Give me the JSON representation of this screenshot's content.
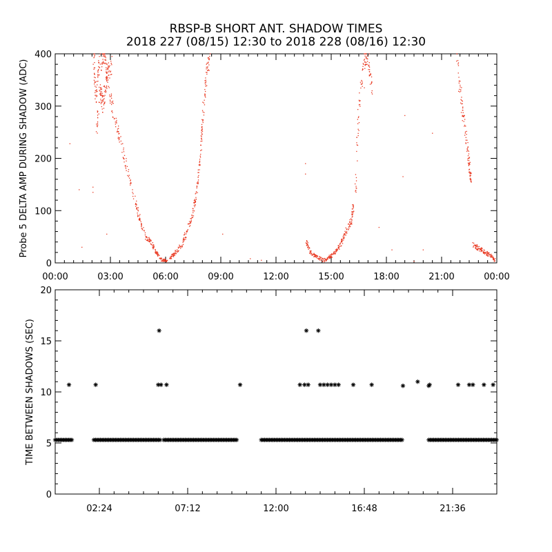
{
  "title": "RBSP-B SHORT ANT. SHADOW TIMES",
  "subtitle": "2018 227 (08/15) 12:30 to 2018 228 (08/16) 12:30",
  "colors": {
    "points_top": "#e8341c",
    "points_bottom": "#000000",
    "axes": "#000000"
  },
  "chart_data": [
    {
      "type": "scatter",
      "ylabel": "Probe 5 DELTA AMP DURING SHADOW (ADC)",
      "xlabel": "",
      "xlim": [
        0,
        24
      ],
      "ylim": [
        0,
        400
      ],
      "x_ticks": [
        0,
        3,
        6,
        9,
        12,
        15,
        18,
        21,
        24
      ],
      "x_tick_labels": [
        "00:00",
        "03:00",
        "06:00",
        "09:00",
        "12:00",
        "15:00",
        "18:00",
        "21:00",
        "00:00"
      ],
      "y_ticks": [
        0,
        100,
        200,
        300,
        400
      ],
      "y_tick_labels": [
        "0",
        "100",
        "200",
        "300",
        "400"
      ],
      "marker": "dot",
      "segments": [
        {
          "name": "",
          "points": [
            [
              2.1,
              400
            ],
            [
              2.2,
              320
            ],
            [
              2.4,
              380
            ],
            [
              2.7,
              400
            ],
            [
              2.9,
              330
            ],
            [
              3.3,
              270
            ],
            [
              3.7,
              210
            ],
            [
              4.1,
              150
            ],
            [
              4.5,
              95
            ],
            [
              4.9,
              50
            ],
            [
              5.2,
              40
            ],
            [
              5.5,
              20
            ],
            [
              5.8,
              5
            ],
            [
              6.1,
              4
            ]
          ]
        },
        {
          "name": "",
          "points": [
            [
              2.25,
              250
            ],
            [
              2.45,
              330
            ],
            [
              2.6,
              300
            ],
            [
              2.8,
              360
            ],
            [
              3.1,
              380
            ]
          ]
        },
        {
          "name": "",
          "points": [
            [
              6.2,
              8
            ],
            [
              6.5,
              18
            ],
            [
              6.9,
              35
            ],
            [
              7.2,
              65
            ],
            [
              7.5,
              95
            ],
            [
              7.7,
              140
            ],
            [
              7.9,
              215
            ],
            [
              8.0,
              270
            ],
            [
              8.2,
              350
            ],
            [
              8.4,
              400
            ]
          ]
        },
        {
          "name": "",
          "points": [
            [
              13.65,
              40
            ],
            [
              13.9,
              18
            ],
            [
              14.2,
              12
            ],
            [
              14.6,
              5
            ],
            [
              14.9,
              10
            ],
            [
              15.2,
              20
            ],
            [
              15.5,
              35
            ],
            [
              15.8,
              60
            ],
            [
              16.1,
              80
            ],
            [
              16.2,
              110
            ]
          ]
        },
        {
          "name": "",
          "points": [
            [
              16.3,
              120
            ],
            [
              16.5,
              290
            ],
            [
              16.8,
              390
            ],
            [
              17.0,
              400
            ],
            [
              17.2,
              330
            ]
          ]
        },
        {
          "name": "",
          "points": [
            [
              21.8,
              400
            ],
            [
              22.1,
              300
            ],
            [
              22.3,
              250
            ],
            [
              22.5,
              190
            ],
            [
              22.6,
              150
            ]
          ]
        },
        {
          "name": "",
          "points": [
            [
              22.7,
              35
            ],
            [
              23.0,
              28
            ],
            [
              23.3,
              22
            ],
            [
              23.6,
              15
            ],
            [
              23.9,
              5
            ]
          ]
        }
      ],
      "scattered_points": [
        [
          0.8,
          228
        ],
        [
          1.3,
          140
        ],
        [
          1.45,
          30
        ],
        [
          2.05,
          145
        ],
        [
          2.05,
          135
        ],
        [
          2.8,
          55
        ],
        [
          9.1,
          55
        ],
        [
          10.6,
          8
        ],
        [
          11.2,
          5
        ],
        [
          13.6,
          190
        ],
        [
          13.6,
          170
        ],
        [
          16.8,
          335
        ],
        [
          17.6,
          68
        ],
        [
          18.3,
          25
        ],
        [
          18.9,
          165
        ],
        [
          19.0,
          282
        ],
        [
          19.5,
          3
        ],
        [
          20.0,
          25
        ],
        [
          20.5,
          248
        ]
      ]
    },
    {
      "type": "scatter",
      "ylabel": "TIME BETWEEN SHADOWS (SEC)",
      "xlabel": "",
      "xlim": [
        0,
        24
      ],
      "ylim": [
        0,
        20
      ],
      "x_ticks": [
        2.4,
        7.2,
        12.0,
        16.8,
        21.6
      ],
      "x_tick_labels": [
        "02:24",
        "07:12",
        "12:00",
        "16:48",
        "21:36"
      ],
      "y_ticks": [
        0,
        5,
        10,
        15,
        20
      ],
      "y_tick_labels": [
        "0",
        "5",
        "10",
        "15",
        "20"
      ],
      "marker": "asterisk",
      "baseline_value": 5.3,
      "baseline_ranges": [
        [
          0.0,
          0.9
        ],
        [
          2.1,
          5.7
        ],
        [
          5.9,
          9.9
        ],
        [
          11.2,
          18.9
        ],
        [
          20.3,
          24.0
        ]
      ],
      "points": [
        [
          0.75,
          10.7
        ],
        [
          2.2,
          10.7
        ],
        [
          5.6,
          10.7
        ],
        [
          5.65,
          16.0
        ],
        [
          5.75,
          10.7
        ],
        [
          6.05,
          10.7
        ],
        [
          10.05,
          10.7
        ],
        [
          13.3,
          10.7
        ],
        [
          13.55,
          10.7
        ],
        [
          13.65,
          16.0
        ],
        [
          13.75,
          10.7
        ],
        [
          14.3,
          16.0
        ],
        [
          14.4,
          10.7
        ],
        [
          14.6,
          10.7
        ],
        [
          14.8,
          10.7
        ],
        [
          15.0,
          10.7
        ],
        [
          15.2,
          10.7
        ],
        [
          15.4,
          10.7
        ],
        [
          16.2,
          10.7
        ],
        [
          17.2,
          10.7
        ],
        [
          18.9,
          10.6
        ],
        [
          19.7,
          11.0
        ],
        [
          20.3,
          10.6
        ],
        [
          20.35,
          10.7
        ],
        [
          21.9,
          10.7
        ],
        [
          22.5,
          10.7
        ],
        [
          22.7,
          10.7
        ],
        [
          23.3,
          10.7
        ],
        [
          23.8,
          10.7
        ]
      ]
    }
  ]
}
